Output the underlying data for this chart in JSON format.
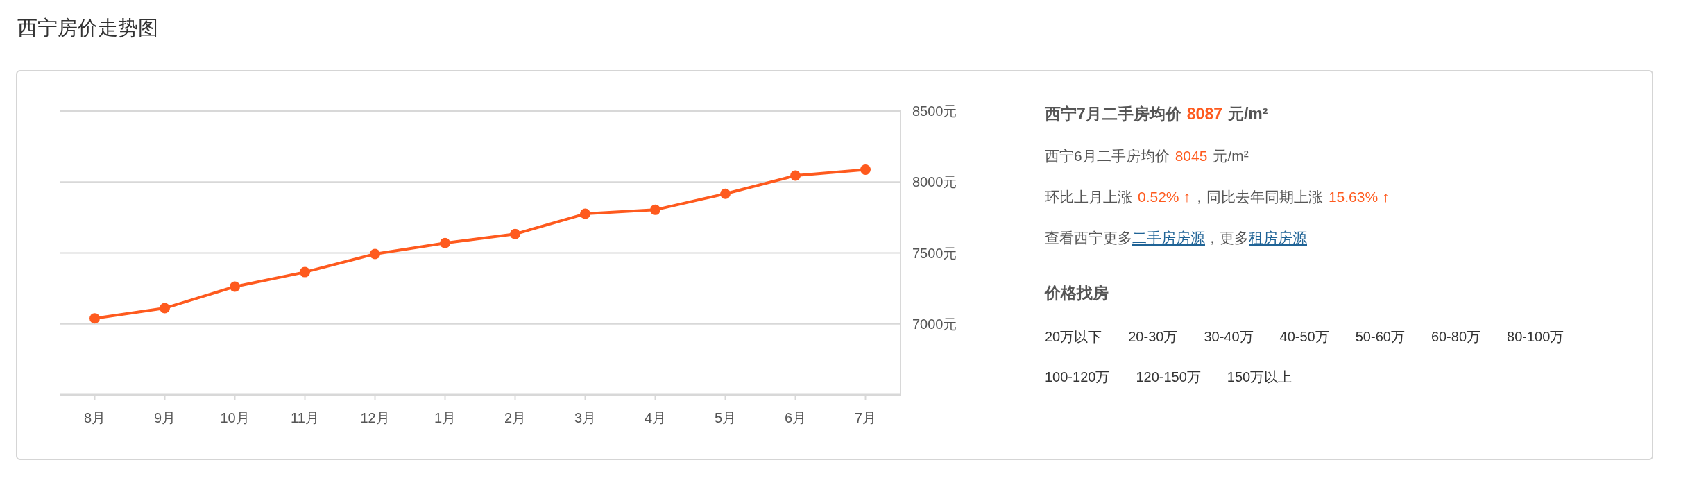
{
  "chart_data": {
    "type": "line",
    "title": "西宁房价走势图",
    "categories": [
      "8月",
      "9月",
      "10月",
      "11月",
      "12月",
      "1月",
      "2月",
      "3月",
      "4月",
      "5月",
      "6月",
      "7月"
    ],
    "series": [
      {
        "color": "#fe5a1e",
        "values": [
          7039,
          7111,
          7263,
          7365,
          7493,
          7570,
          7633,
          7776,
          7804,
          7917,
          8045,
          8087
        ]
      }
    ],
    "ylim": [
      6500,
      8500
    ],
    "yticks": [
      {
        "value": 7000,
        "label": "7000元"
      },
      {
        "value": 7500,
        "label": "7500元"
      },
      {
        "value": 8000,
        "label": "8000元"
      },
      {
        "value": 8500,
        "label": "8500元"
      }
    ],
    "grid": "y",
    "marker": "circle",
    "line_style": "solid",
    "annotations": [
      "西宁7月二手房均价",
      "8087",
      "元/m²",
      "西宁6月二手房均价",
      "8045",
      "元/m²",
      "环比上月上涨",
      "0.52% ↑",
      "，同比去年同期上涨",
      "15.63% ↑",
      "查看西宁更多",
      "二手房房源",
      "，更多",
      "租房房源",
      "价格找房",
      "20万以下",
      "20-30万",
      "30-40万",
      "40-50万",
      "50-60万",
      "60-80万",
      "80-100万",
      "100-120万",
      "120-150万",
      "150万以上"
    ]
  }
}
